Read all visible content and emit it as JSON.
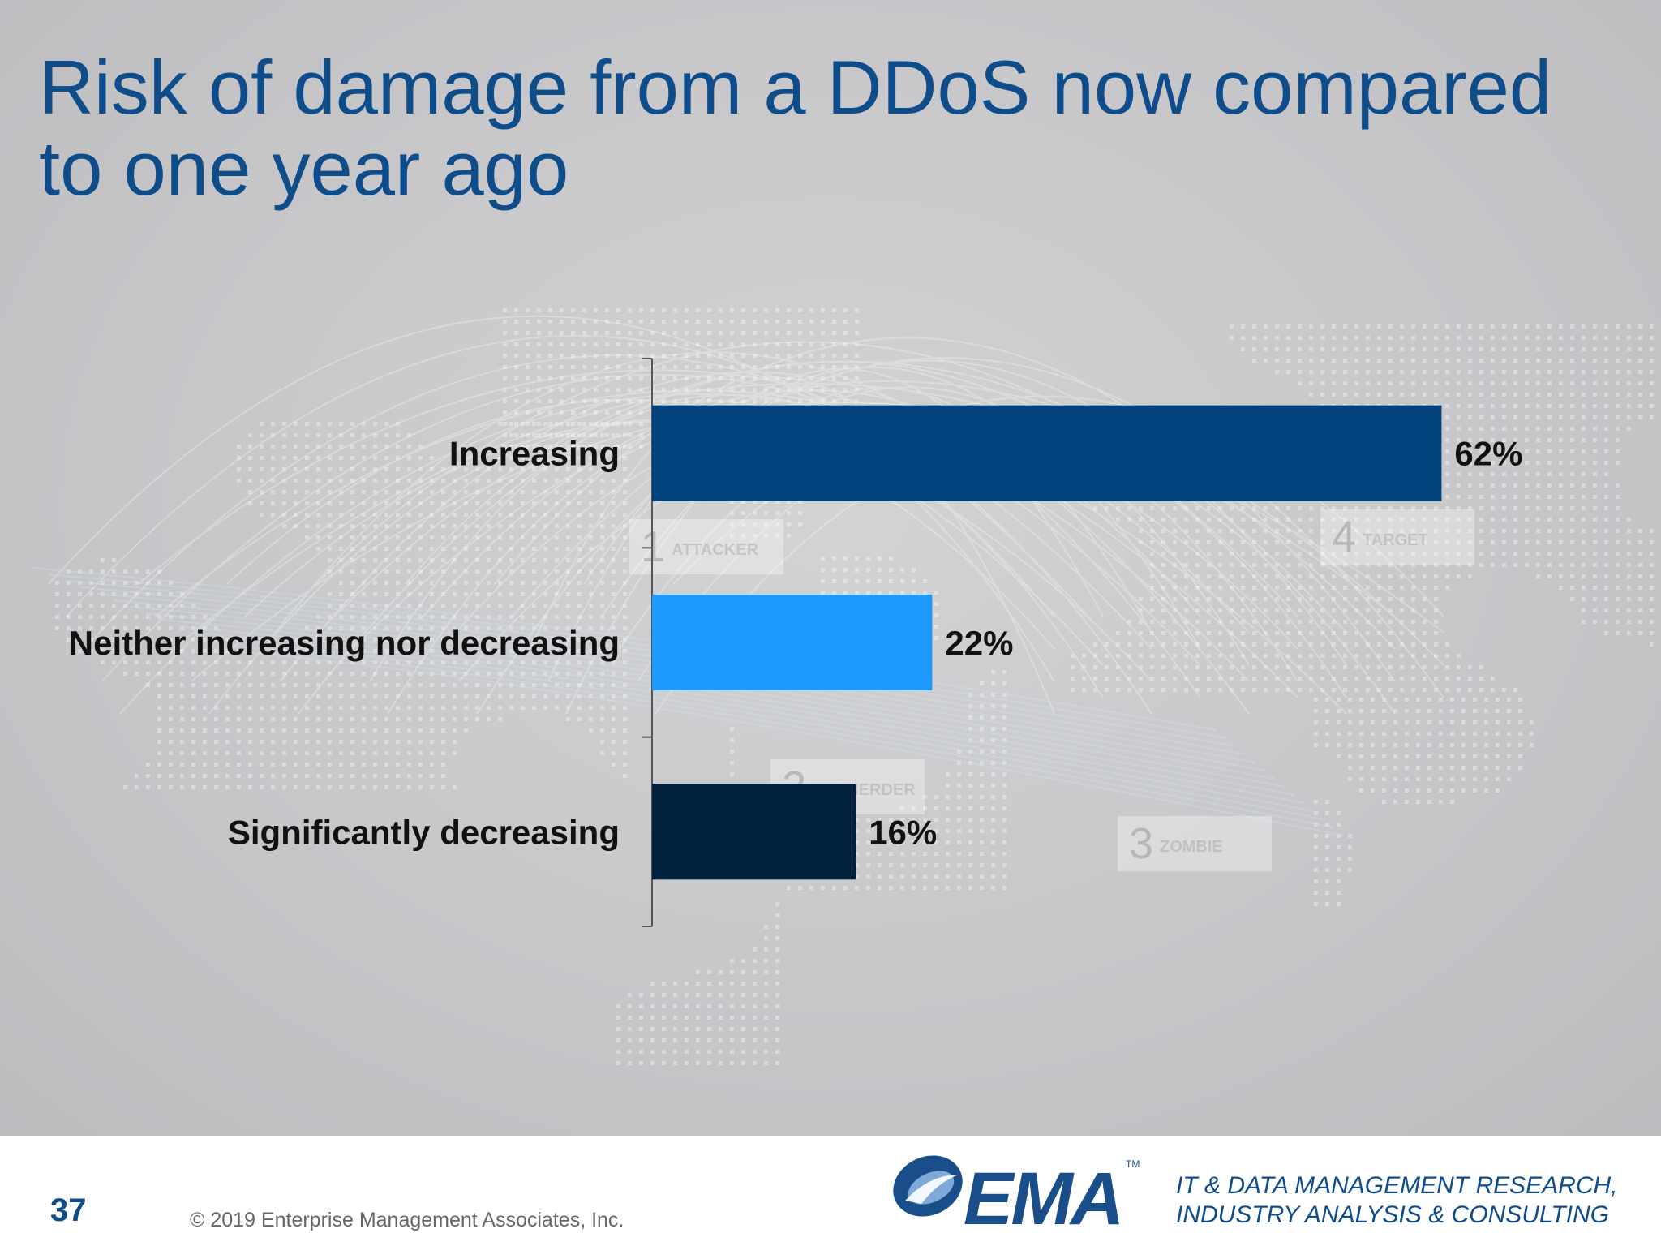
{
  "slide": {
    "title": "Risk of damage from a DDoS now compared to one year ago",
    "page_number": "37",
    "copyright": "© 2019 Enterprise Management Associates, Inc."
  },
  "background": {
    "map_tags": [
      {
        "number": "1",
        "label": "ATTACKER"
      },
      {
        "number": "2",
        "label": "BOTHERDER"
      },
      {
        "number": "3",
        "label": "ZOMBIE"
      },
      {
        "number": "4",
        "label": "TARGET"
      }
    ]
  },
  "logo": {
    "text": "EMA",
    "trademark": "TM",
    "registered": "®"
  },
  "tagline": {
    "line1": "IT & DATA MANAGEMENT RESEARCH,",
    "line2": "INDUSTRY ANALYSIS & CONSULTING"
  },
  "chart_data": {
    "type": "bar",
    "orientation": "horizontal",
    "title": "Risk of damage from a DDoS now compared to one year ago",
    "categories": [
      "Increasing",
      "Neither increasing nor decreasing",
      "Significantly decreasing"
    ],
    "values": [
      62,
      22,
      16
    ],
    "value_labels": [
      "62%",
      "22%",
      "16%"
    ],
    "unit": "%",
    "colors": [
      "#00437c",
      "#1a9aff",
      "#01213d"
    ],
    "xlim": [
      0,
      100
    ],
    "grid": false,
    "legend": "none"
  }
}
